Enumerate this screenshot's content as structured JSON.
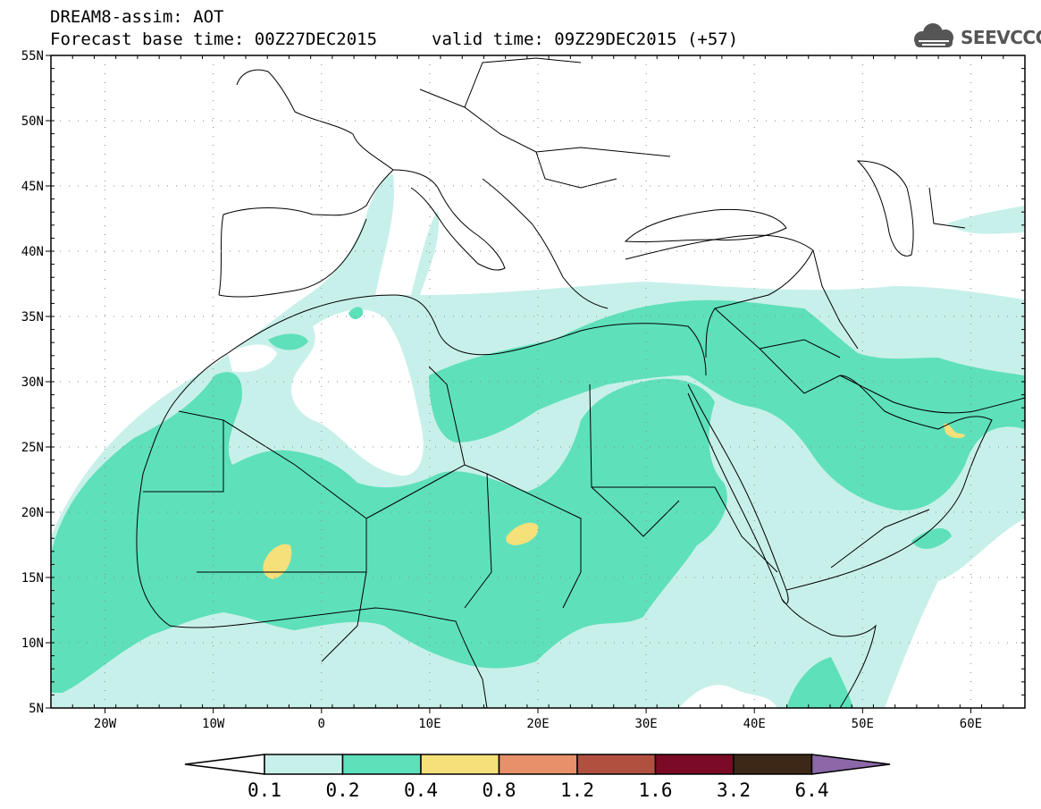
{
  "header": {
    "title": "DREAM8-assim: AOT",
    "base_time": "Forecast base time: 00Z27DEC2015",
    "valid_time": "valid time: 09Z29DEC2015 (+57)"
  },
  "logo": {
    "text": "SEEVCCC",
    "icon": "cloud-logo-icon"
  },
  "axes": {
    "lat_labels": [
      "55N",
      "50N",
      "45N",
      "40N",
      "35N",
      "30N",
      "25N",
      "20N",
      "15N",
      "10N",
      "5N"
    ],
    "lat_values": [
      55,
      50,
      45,
      40,
      35,
      30,
      25,
      20,
      15,
      10,
      5
    ],
    "lon_labels": [
      "20W",
      "10W",
      "0",
      "10E",
      "20E",
      "30E",
      "40E",
      "50E",
      "60E"
    ],
    "lon_values": [
      -20,
      -10,
      0,
      10,
      20,
      30,
      40,
      50,
      60
    ],
    "lon_range": [
      -25,
      65
    ],
    "lat_range": [
      5,
      55
    ],
    "grid": "dotted"
  },
  "colorbar": {
    "labels": [
      "0.1",
      "0.2",
      "0.4",
      "0.8",
      "1.2",
      "1.6",
      "3.2",
      "6.4"
    ],
    "colors": [
      "#ffffff",
      "#c8f0ea",
      "#5ee0bb",
      "#f5e07a",
      "#e8906a",
      "#b25040",
      "#7a0a25",
      "#3d2818",
      "#8c68a8"
    ]
  },
  "colors": {
    "ocean": "#ffffff",
    "land_outline": "#000000",
    "aot_0_1": "#c8f0ea",
    "aot_0_2": "#5ee0bb",
    "aot_0_4": "#f5e07a"
  }
}
